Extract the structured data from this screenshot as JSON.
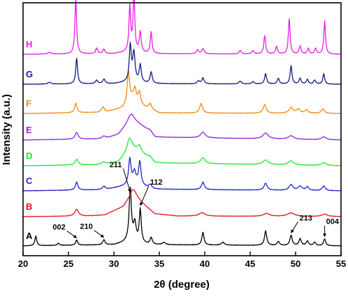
{
  "chart_data": {
    "type": "line",
    "title": "",
    "xlabel": "2θ (degree)",
    "ylabel": "Intensity (a.u.)",
    "xlim": [
      20,
      55
    ],
    "xticks": [
      "20",
      "25",
      "30",
      "35",
      "40",
      "45",
      "50",
      "55"
    ],
    "yticks_visible": false,
    "grid": false,
    "legend": "inline labels at left of each trace",
    "series": [
      {
        "name": "A",
        "color": "#000000",
        "noise": 0.006,
        "baseline": [
          [
            20,
            0.05
          ],
          [
            30,
            0.07
          ],
          [
            31.5,
            0.12
          ],
          [
            34,
            0.07
          ],
          [
            55,
            0.05
          ]
        ],
        "peaks": [
          [
            21.4,
            0.17,
            0.12
          ],
          [
            23.9,
            0.035,
            0.15
          ],
          [
            25.9,
            0.09,
            0.13
          ],
          [
            28.9,
            0.09,
            0.14
          ],
          [
            31.8,
            0.92,
            0.15
          ],
          [
            32.3,
            0.32,
            0.18
          ],
          [
            32.9,
            0.58,
            0.13
          ],
          [
            34.1,
            0.12,
            0.15
          ],
          [
            35.5,
            0.04,
            0.2
          ],
          [
            39.8,
            0.22,
            0.14
          ],
          [
            42,
            0.05,
            0.2
          ],
          [
            46.7,
            0.25,
            0.15
          ],
          [
            48.1,
            0.07,
            0.15
          ],
          [
            49.5,
            0.18,
            0.15
          ],
          [
            50.5,
            0.12,
            0.15
          ],
          [
            51.3,
            0.08,
            0.15
          ],
          [
            52.1,
            0.06,
            0.15
          ],
          [
            53.2,
            0.12,
            0.14
          ]
        ]
      },
      {
        "name": "B",
        "color": "#e8151b",
        "noise": 0.005,
        "baseline": [
          [
            20,
            0.05
          ],
          [
            27,
            0.06
          ],
          [
            29,
            0.08
          ],
          [
            31,
            0.22
          ],
          [
            32,
            0.42
          ],
          [
            33,
            0.3
          ],
          [
            34.5,
            0.1
          ],
          [
            37,
            0.06
          ],
          [
            55,
            0.05
          ]
        ],
        "peaks": [
          [
            25.9,
            0.12,
            0.25
          ],
          [
            32.2,
            0.12,
            0.4
          ],
          [
            39.7,
            0.06,
            0.4
          ],
          [
            46.8,
            0.05,
            0.4
          ],
          [
            49.5,
            0.06,
            0.5
          ],
          [
            53.2,
            0.04,
            0.4
          ]
        ]
      },
      {
        "name": "C",
        "color": "#1f27c7",
        "noise": 0.006,
        "baseline": [
          [
            20,
            0.05
          ],
          [
            29,
            0.07
          ],
          [
            31,
            0.13
          ],
          [
            32.5,
            0.18
          ],
          [
            34,
            0.08
          ],
          [
            55,
            0.05
          ]
        ],
        "peaks": [
          [
            25.9,
            0.14,
            0.16
          ],
          [
            28.9,
            0.06,
            0.2
          ],
          [
            31.75,
            0.45,
            0.16
          ],
          [
            32.25,
            0.2,
            0.18
          ],
          [
            32.85,
            0.4,
            0.15
          ],
          [
            34,
            0.08,
            0.2
          ],
          [
            39.8,
            0.13,
            0.18
          ],
          [
            46.7,
            0.12,
            0.2
          ],
          [
            49.5,
            0.1,
            0.25
          ],
          [
            50.5,
            0.07,
            0.25
          ],
          [
            51.3,
            0.06,
            0.2
          ],
          [
            53.1,
            0.08,
            0.2
          ]
        ]
      },
      {
        "name": "D",
        "color": "#21e82f",
        "noise": 0.005,
        "baseline": [
          [
            20,
            0.05
          ],
          [
            29,
            0.07
          ],
          [
            30.5,
            0.12
          ],
          [
            32,
            0.35
          ],
          [
            33.5,
            0.22
          ],
          [
            34.5,
            0.1
          ],
          [
            55,
            0.05
          ]
        ],
        "peaks": [
          [
            25.9,
            0.1,
            0.2
          ],
          [
            28.9,
            0.05,
            0.25
          ],
          [
            31.7,
            0.22,
            0.3
          ],
          [
            32.8,
            0.12,
            0.25
          ],
          [
            34,
            0.05,
            0.3
          ],
          [
            39.8,
            0.1,
            0.3
          ],
          [
            46.7,
            0.08,
            0.35
          ],
          [
            49.5,
            0.07,
            0.35
          ],
          [
            53.1,
            0.05,
            0.3
          ]
        ]
      },
      {
        "name": "E",
        "color": "#9426d6",
        "noise": 0.005,
        "baseline": [
          [
            20,
            0.05
          ],
          [
            29,
            0.07
          ],
          [
            30.5,
            0.15
          ],
          [
            32,
            0.42
          ],
          [
            33.5,
            0.25
          ],
          [
            34.5,
            0.1
          ],
          [
            55,
            0.05
          ]
        ],
        "peaks": [
          [
            25.9,
            0.12,
            0.2
          ],
          [
            28.9,
            0.05,
            0.25
          ],
          [
            31.8,
            0.1,
            0.4
          ],
          [
            34,
            0.05,
            0.3
          ],
          [
            39.8,
            0.1,
            0.3
          ],
          [
            46.7,
            0.1,
            0.35
          ],
          [
            49.5,
            0.06,
            0.35
          ],
          [
            53.1,
            0.05,
            0.3
          ]
        ]
      },
      {
        "name": "F",
        "color": "#f08a12",
        "noise": 0.005,
        "baseline": [
          [
            20,
            0.05
          ],
          [
            29,
            0.07
          ],
          [
            31,
            0.15
          ],
          [
            32,
            0.3
          ],
          [
            33.5,
            0.15
          ],
          [
            35,
            0.06
          ],
          [
            55,
            0.05
          ]
        ],
        "peaks": [
          [
            25.8,
            0.17,
            0.15
          ],
          [
            28.8,
            0.1,
            0.18
          ],
          [
            31.6,
            0.55,
            0.15
          ],
          [
            32.3,
            0.22,
            0.18
          ],
          [
            32.8,
            0.2,
            0.15
          ],
          [
            34,
            0.1,
            0.2
          ],
          [
            39.6,
            0.17,
            0.18
          ],
          [
            46.6,
            0.15,
            0.2
          ],
          [
            49.5,
            0.1,
            0.25
          ],
          [
            50.3,
            0.07,
            0.25
          ],
          [
            51.2,
            0.06,
            0.2
          ],
          [
            53,
            0.08,
            0.2
          ]
        ]
      },
      {
        "name": "G",
        "color": "#141a85",
        "noise": 0.005,
        "baseline": [
          [
            20,
            0.05
          ],
          [
            30,
            0.06
          ],
          [
            32,
            0.1
          ],
          [
            34,
            0.06
          ],
          [
            55,
            0.05
          ]
        ],
        "peaks": [
          [
            22.9,
            0.03,
            0.2
          ],
          [
            25.9,
            0.45,
            0.12
          ],
          [
            28.1,
            0.06,
            0.15
          ],
          [
            28.9,
            0.08,
            0.15
          ],
          [
            31.8,
            0.62,
            0.13
          ],
          [
            32.2,
            0.5,
            0.15
          ],
          [
            32.9,
            0.3,
            0.13
          ],
          [
            34.1,
            0.2,
            0.14
          ],
          [
            39.3,
            0.05,
            0.15
          ],
          [
            39.8,
            0.1,
            0.15
          ],
          [
            43.9,
            0.05,
            0.15
          ],
          [
            45.3,
            0.04,
            0.15
          ],
          [
            46.7,
            0.18,
            0.13
          ],
          [
            48.1,
            0.1,
            0.13
          ],
          [
            49.5,
            0.32,
            0.12
          ],
          [
            50.5,
            0.1,
            0.13
          ],
          [
            51.3,
            0.08,
            0.13
          ],
          [
            52.1,
            0.07,
            0.13
          ],
          [
            53.1,
            0.18,
            0.12
          ]
        ]
      },
      {
        "name": "H",
        "color": "#e61ee6",
        "noise": 0.005,
        "baseline": [
          [
            20,
            0.05
          ],
          [
            30,
            0.06
          ],
          [
            32,
            0.1
          ],
          [
            34,
            0.06
          ],
          [
            55,
            0.05
          ]
        ],
        "peaks": [
          [
            22.9,
            0.03,
            0.2
          ],
          [
            25.8,
            0.98,
            0.11
          ],
          [
            28.1,
            0.1,
            0.13
          ],
          [
            28.9,
            0.08,
            0.13
          ],
          [
            31.75,
            0.78,
            0.11
          ],
          [
            32.2,
            1.02,
            0.11
          ],
          [
            32.9,
            0.35,
            0.12
          ],
          [
            34.1,
            0.38,
            0.11
          ],
          [
            39.2,
            0.07,
            0.15
          ],
          [
            39.8,
            0.09,
            0.15
          ],
          [
            43.9,
            0.06,
            0.14
          ],
          [
            45.3,
            0.06,
            0.14
          ],
          [
            46.6,
            0.32,
            0.12
          ],
          [
            47.9,
            0.13,
            0.12
          ],
          [
            49.3,
            0.62,
            0.11
          ],
          [
            50.5,
            0.14,
            0.12
          ],
          [
            51.4,
            0.1,
            0.12
          ],
          [
            52.2,
            0.1,
            0.12
          ],
          [
            53.2,
            0.58,
            0.11
          ]
        ]
      }
    ],
    "annotations": [
      {
        "text": "002",
        "series": "A",
        "x": 25.9
      },
      {
        "text": "210",
        "series": "A",
        "x": 28.9
      },
      {
        "text": "211",
        "series": "A",
        "x": 31.8
      },
      {
        "text": "112",
        "series": "A",
        "x": 32.9
      },
      {
        "text": "213",
        "series": "A",
        "x": 49.5
      },
      {
        "text": "004",
        "series": "A",
        "x": 53.2
      }
    ]
  }
}
